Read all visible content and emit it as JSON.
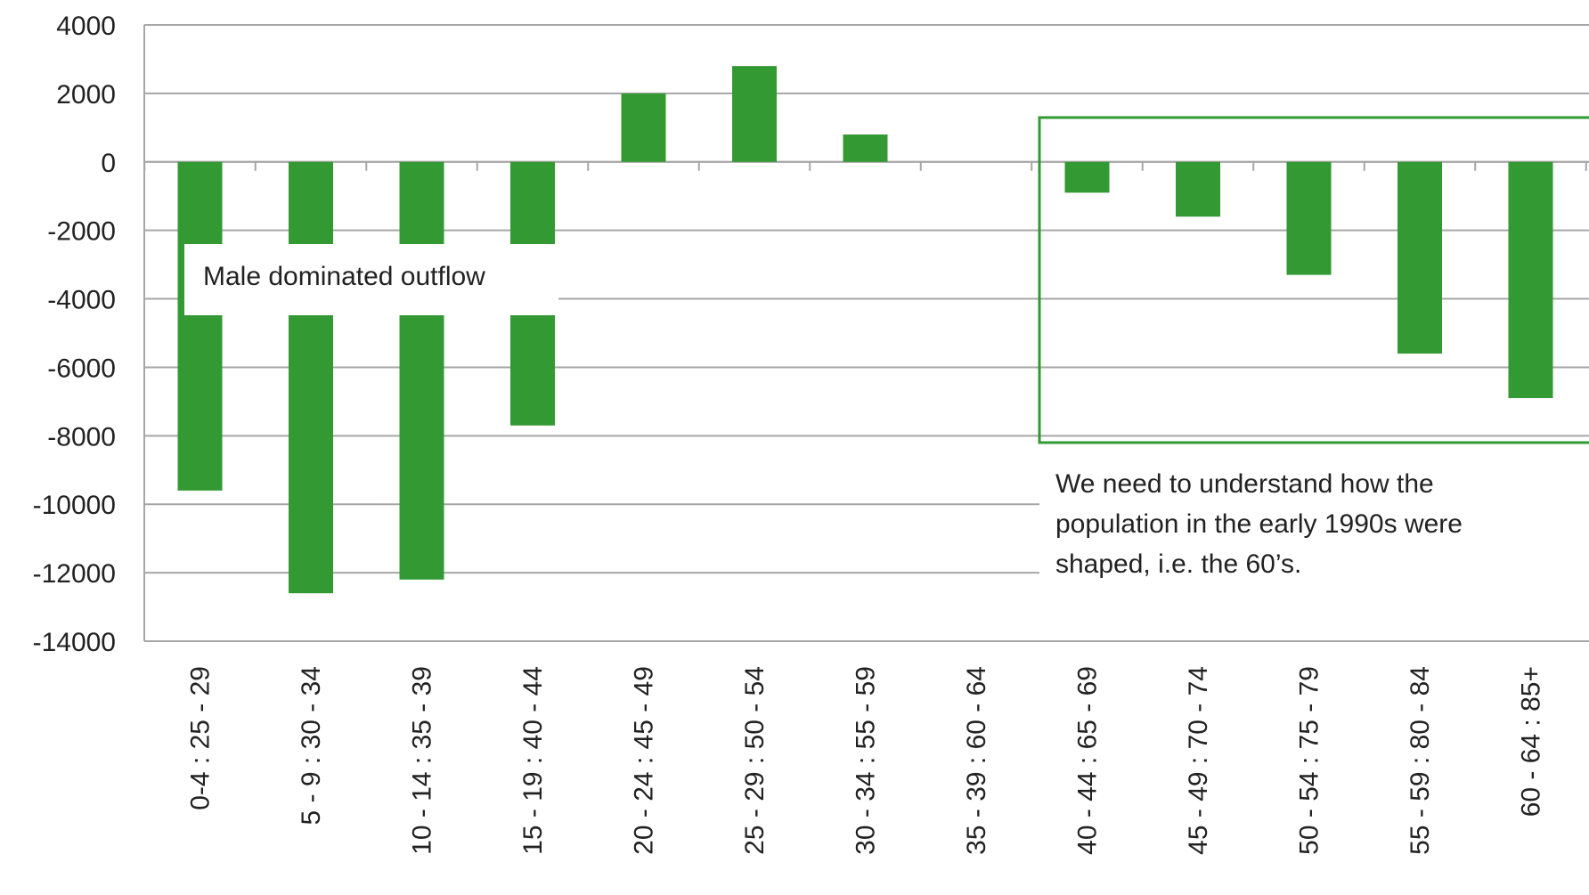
{
  "chart_data": {
    "type": "bar",
    "categories": [
      "0-4 : 25 - 29",
      "5 - 9 : 30 - 34",
      "10 - 14 : 35 - 39",
      "15 - 19 : 40 - 44",
      "20 - 24 : 45 - 49",
      "25 - 29 : 50 - 54",
      "30 - 34 : 55 - 59",
      "35 - 39 : 60 - 64",
      "40 - 44 : 65 - 69",
      "45 - 49 : 70 - 74",
      "50 - 54 : 75 - 79",
      "55 - 59 : 80 - 84",
      "60 - 64 : 85+"
    ],
    "values": [
      -9600,
      -12600,
      -12200,
      -7700,
      2000,
      2800,
      800,
      0,
      -900,
      -1600,
      -3300,
      -5600,
      -6900
    ],
    "title": "",
    "xlabel": "",
    "ylabel": "",
    "ylim": [
      -14000,
      4000
    ],
    "yticks": [
      4000,
      2000,
      0,
      -2000,
      -4000,
      -6000,
      -8000,
      -10000,
      -12000,
      -14000
    ],
    "grid": true,
    "legend": "none",
    "bar_color": "#339933",
    "highlight_box_color": "#339933",
    "annotations": {
      "left": "Male dominated outflow",
      "right_lines": [
        "We need to understand how the",
        "population in the early 1990s were",
        "shaped, i.e. the 60’s."
      ]
    }
  }
}
